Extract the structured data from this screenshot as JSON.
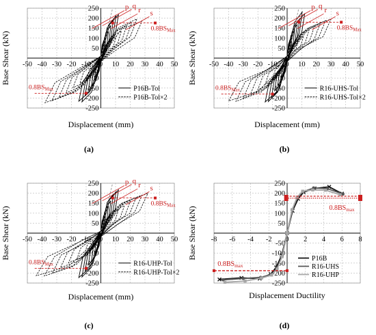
{
  "colors": {
    "grid": "#b8b8b8",
    "axis": "#000000",
    "curve": "#000000",
    "annotation": "#cc1f1f",
    "reference_gray": "#9a9a9a",
    "series_p16b": "#111111",
    "series_r16uhs": "#555555",
    "series_r16uhp": "#a6a6a6"
  },
  "chart_data": [
    {
      "type": "line",
      "panel_label": "(a)",
      "xlabel": "Displacement (mm)",
      "ylabel": "Base Shear (kN)",
      "xlim": [
        -50,
        50
      ],
      "ylim": [
        -250,
        250
      ],
      "x_ticks": [
        -50,
        -40,
        -30,
        -20,
        -10,
        0,
        10,
        20,
        30,
        40,
        50
      ],
      "y_ticks": [
        -250,
        -200,
        -150,
        -100,
        -50,
        0,
        50,
        100,
        150,
        200,
        250
      ],
      "x_tick_labels": [
        "-50",
        "-40",
        "-30",
        "-20",
        "-10",
        "0",
        "10",
        "20",
        "30",
        "40",
        "50"
      ],
      "y_tick_labels": [
        "-250",
        "-200",
        "-150",
        "-100",
        "-50",
        "0",
        "50",
        "100",
        "150",
        "200",
        "250"
      ],
      "grid": true,
      "legend_position": "bottom-right",
      "series": [
        {
          "name": "P16B-Tol",
          "style": "solid",
          "envelope": {
            "x": [
              -15,
              -12,
              -9,
              -6,
              -4,
              -2,
              0,
              2,
              4,
              6,
              9,
              12
            ],
            "y": [
              -225,
              -215,
              -200,
              -175,
              -145,
              -90,
              0,
              90,
              145,
              180,
              215,
              225
            ]
          }
        },
        {
          "name": "P16B-Tol×2",
          "style": "dashed",
          "envelope": {
            "x": [
              -38,
              -30,
              -22,
              -15,
              -8,
              0,
              8,
              15,
              22,
              28
            ],
            "y": [
              -225,
              -205,
              -175,
              -140,
              -85,
              0,
              85,
              140,
              180,
              200
            ]
          }
        }
      ],
      "annotations": {
        "lines": [
          "p",
          "q",
          "r",
          "s"
        ],
        "threshold_label": "0.8BS",
        "threshold_subscript": "Max",
        "threshold_value": 176
      }
    },
    {
      "type": "line",
      "panel_label": "(b)",
      "xlabel": "Displacement (mm)",
      "ylabel": "Base Shear (kN)",
      "xlim": [
        -50,
        50
      ],
      "ylim": [
        -250,
        250
      ],
      "x_ticks": [
        -50,
        -40,
        -30,
        -20,
        -10,
        0,
        10,
        20,
        30,
        40,
        50
      ],
      "y_ticks": [
        -250,
        -200,
        -150,
        -100,
        -50,
        0,
        50,
        100,
        150,
        200,
        250
      ],
      "x_tick_labels": [
        "-50",
        "-40",
        "-30",
        "-20",
        "-10",
        "0",
        "10",
        "20",
        "30",
        "40",
        "50"
      ],
      "y_tick_labels": [
        "-250",
        "-200",
        "-150",
        "-100",
        "-50",
        "0",
        "50",
        "100",
        "150",
        "200",
        "250"
      ],
      "grid": true,
      "legend_position": "bottom-right",
      "series": [
        {
          "name": "R16-UHS-Tol",
          "style": "solid",
          "envelope": {
            "x": [
              -15,
              -12,
              -9,
              -6,
              -4,
              -2,
              0,
              2,
              4,
              6,
              9,
              12
            ],
            "y": [
              -230,
              -218,
              -200,
              -175,
              -145,
              -90,
              0,
              90,
              150,
              185,
              218,
              232
            ]
          }
        },
        {
          "name": "R16-UHS-Tol×2",
          "style": "dashed",
          "envelope": {
            "x": [
              -40,
              -32,
              -24,
              -16,
              -8,
              0,
              8,
              16,
              24,
              30
            ],
            "y": [
              -228,
              -210,
              -180,
              -140,
              -85,
              0,
              85,
              145,
              182,
              200
            ]
          }
        }
      ],
      "annotations": {
        "lines": [
          "p",
          "q",
          "r",
          "s"
        ],
        "threshold_label": "0.8BS",
        "threshold_subscript": "Max",
        "threshold_value": 180
      }
    },
    {
      "type": "line",
      "panel_label": "(c)",
      "xlabel": "Displacement (mm)",
      "ylabel": "Base Shear (kN)",
      "xlim": [
        -50,
        50
      ],
      "ylim": [
        -250,
        250
      ],
      "x_ticks": [
        -50,
        -40,
        -30,
        -20,
        -10,
        0,
        10,
        20,
        30,
        40,
        50
      ],
      "y_ticks": [
        -250,
        -200,
        -150,
        -100,
        -50,
        0,
        50,
        100,
        150,
        200,
        250
      ],
      "x_tick_labels": [
        "-50",
        "-40",
        "-30",
        "-20",
        "-10",
        "0",
        "10",
        "20",
        "30",
        "40",
        "50"
      ],
      "y_tick_labels": [
        "-250",
        "-200",
        "-150",
        "-100",
        "-50",
        "0",
        "50",
        "100",
        "150",
        "200",
        "250"
      ],
      "grid": true,
      "legend_position": "bottom-right",
      "series": [
        {
          "name": "R16-UHP-Tol",
          "style": "solid",
          "envelope": {
            "x": [
              -15,
              -12,
              -9,
              -6,
              -4,
              -2,
              0,
              2,
              4,
              6,
              9,
              12
            ],
            "y": [
              -225,
              -212,
              -198,
              -172,
              -140,
              -88,
              0,
              88,
              145,
              180,
              212,
              222
            ]
          }
        },
        {
          "name": "R16-UHP-Tol×2",
          "style": "dashed",
          "envelope": {
            "x": [
              -44,
              -35,
              -26,
              -18,
              -9,
              0,
              9,
              18,
              26,
              32
            ],
            "y": [
              -230,
              -212,
              -182,
              -145,
              -88,
              0,
              88,
              148,
              185,
              205
            ]
          }
        }
      ],
      "annotations": {
        "lines": [
          "p",
          "q",
          "r",
          "s"
        ],
        "threshold_label": "0.8BS",
        "threshold_subscript": "Max",
        "threshold_value": 176
      }
    },
    {
      "type": "line",
      "panel_label": "(d)",
      "xlabel": "Displacement Ductility",
      "ylabel": "Base Shear (kN)",
      "xlim": [
        -8,
        8
      ],
      "ylim": [
        -250,
        250
      ],
      "x_ticks": [
        -8,
        -6,
        -4,
        -2,
        0,
        2,
        4,
        6,
        8
      ],
      "y_ticks": [
        -250,
        -200,
        -150,
        -100,
        -50,
        0,
        50,
        100,
        150,
        200,
        250
      ],
      "x_tick_labels": [
        "-8",
        "-6",
        "-4",
        "-2",
        "0",
        "2",
        "4",
        "6",
        "8"
      ],
      "y_tick_labels": [
        "-250",
        "-200",
        "-150",
        "-100",
        "-50",
        "0",
        "50",
        "100",
        "150",
        "200",
        "250"
      ],
      "grid": true,
      "legend_position": "bottom-right",
      "series": [
        {
          "name": "P16B",
          "x": [
            -7.4,
            -5,
            -3,
            -1.8,
            -1.2,
            -0.6,
            0,
            0.6,
            1.2,
            1.8,
            3,
            4.6,
            6
          ],
          "y": [
            -232,
            -224,
            -228,
            -205,
            -172,
            -112,
            0,
            112,
            172,
            205,
            224,
            232,
            198
          ]
        },
        {
          "name": "R16-UHS",
          "x": [
            -7,
            -4.8,
            -2.9,
            -1.7,
            -1.1,
            -0.55,
            0,
            0.55,
            1.1,
            1.7,
            2.9,
            4.4,
            6.1
          ],
          "y": [
            -234,
            -227,
            -222,
            -207,
            -176,
            -116,
            0,
            116,
            176,
            207,
            226,
            223,
            196
          ]
        },
        {
          "name": "R16-UHP",
          "x": [
            -6.8,
            -4.6,
            -2.8,
            -1.7,
            -1.1,
            -0.55,
            0,
            0.55,
            1.1,
            1.7,
            2.8,
            4.2,
            5.8
          ],
          "y": [
            -246,
            -240,
            -225,
            -210,
            -180,
            -118,
            0,
            118,
            180,
            210,
            216,
            215,
            192
          ]
        }
      ],
      "annotations": {
        "threshold_label": "0.8BS",
        "threshold_subscript": "max",
        "threshold_value_pos": 185,
        "threshold_value_neg": -188
      }
    }
  ]
}
